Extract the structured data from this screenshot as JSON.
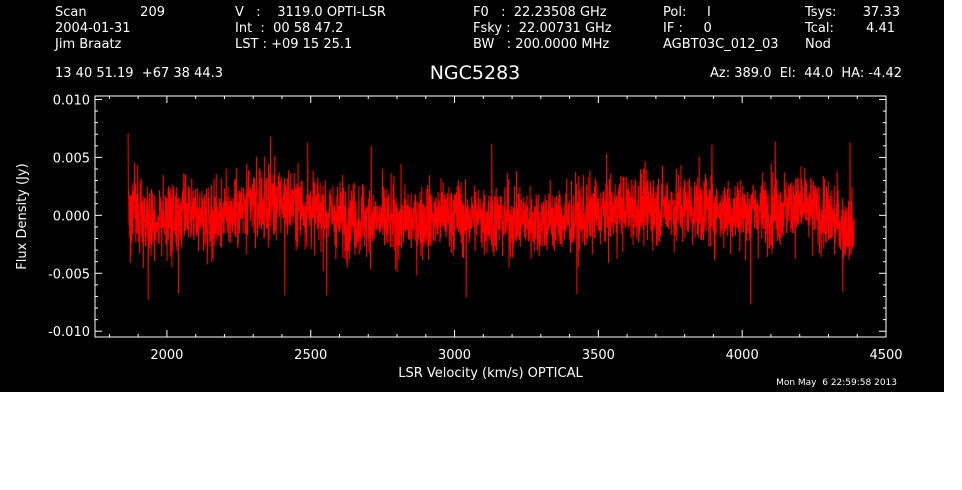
{
  "header": {
    "scan_label": "Scan",
    "scan_value": "209",
    "date": "2004-01-31",
    "observer": "Jim Braatz",
    "v_line": "V   :    3119.0 OPTI-LSR",
    "int_line": "Int  :  00 58 47.2",
    "lst_line": "LST : +09 15 25.1",
    "f0_line": "F0   :  22.23508 GHz",
    "fsky_line": "Fsky :  22.00731 GHz",
    "bw_line": "BW   : 200.0000 MHz",
    "pol_line": "Pol:     I",
    "if_line": "IF :     0",
    "proc": "AGBT03C_012_03",
    "tsys_label": "Tsys:",
    "tsys_value": "37.33",
    "tcal_label": "Tcal:",
    "tcal_value": "4.41",
    "mode": "Nod",
    "coords": "13 40 51.19  +67 38 44.3",
    "target": "NGC5283",
    "az_el_ha": "Az: 389.0  El:  44.0  HA: -4.42",
    "timestamp": "Mon May  6 22:59:58 2013"
  },
  "colors": {
    "background": "#000000",
    "axes": "#ffffff",
    "trace": "#ff0000"
  },
  "chart_data": {
    "type": "line",
    "title": "NGC5283",
    "xlabel": "LSR Velocity (km/s) OPTICAL",
    "ylabel": "Flux Density (Jy)",
    "xlim": [
      1750,
      4500
    ],
    "ylim": [
      -0.0105,
      0.0103
    ],
    "x_ticks": [
      2000,
      2500,
      3000,
      3500,
      4000,
      4500
    ],
    "y_ticks": [
      -0.01,
      -0.005,
      0.0,
      0.005,
      0.01
    ],
    "y_tick_labels": [
      "-0.010",
      "-0.005",
      "0.000",
      "0.005",
      "0.010"
    ],
    "grid": false,
    "series": [
      {
        "color": "#ff0000",
        "x_range": [
          1865,
          4390
        ],
        "points": 3000,
        "noise_rms": 0.0022,
        "baseline_x": [
          1865,
          2000,
          2200,
          2400,
          2600,
          2800,
          3000,
          3200,
          3400,
          3600,
          3800,
          4000,
          4200,
          4390
        ],
        "baseline_y": [
          0.0003,
          -0.0004,
          0.0002,
          0.0012,
          -0.0002,
          -0.0006,
          0.0,
          -0.0004,
          -0.0004,
          0.0006,
          0.0007,
          0.0002,
          0.0008,
          -0.0012
        ],
        "peaks_x": [
          1865,
          2360,
          2490,
          2710,
          3130,
          3895,
          4115,
          4375
        ],
        "peaks_y": [
          0.0071,
          0.0068,
          0.0063,
          0.006,
          0.0062,
          0.0061,
          0.0064,
          0.0063
        ],
        "troughs_x": [
          1935,
          2040,
          2410,
          2555,
          3040,
          3425,
          4030,
          4350
        ],
        "troughs_y": [
          -0.0073,
          -0.0068,
          -0.0069,
          -0.0069,
          -0.0071,
          -0.0068,
          -0.0077,
          -0.0066
        ]
      }
    ]
  }
}
